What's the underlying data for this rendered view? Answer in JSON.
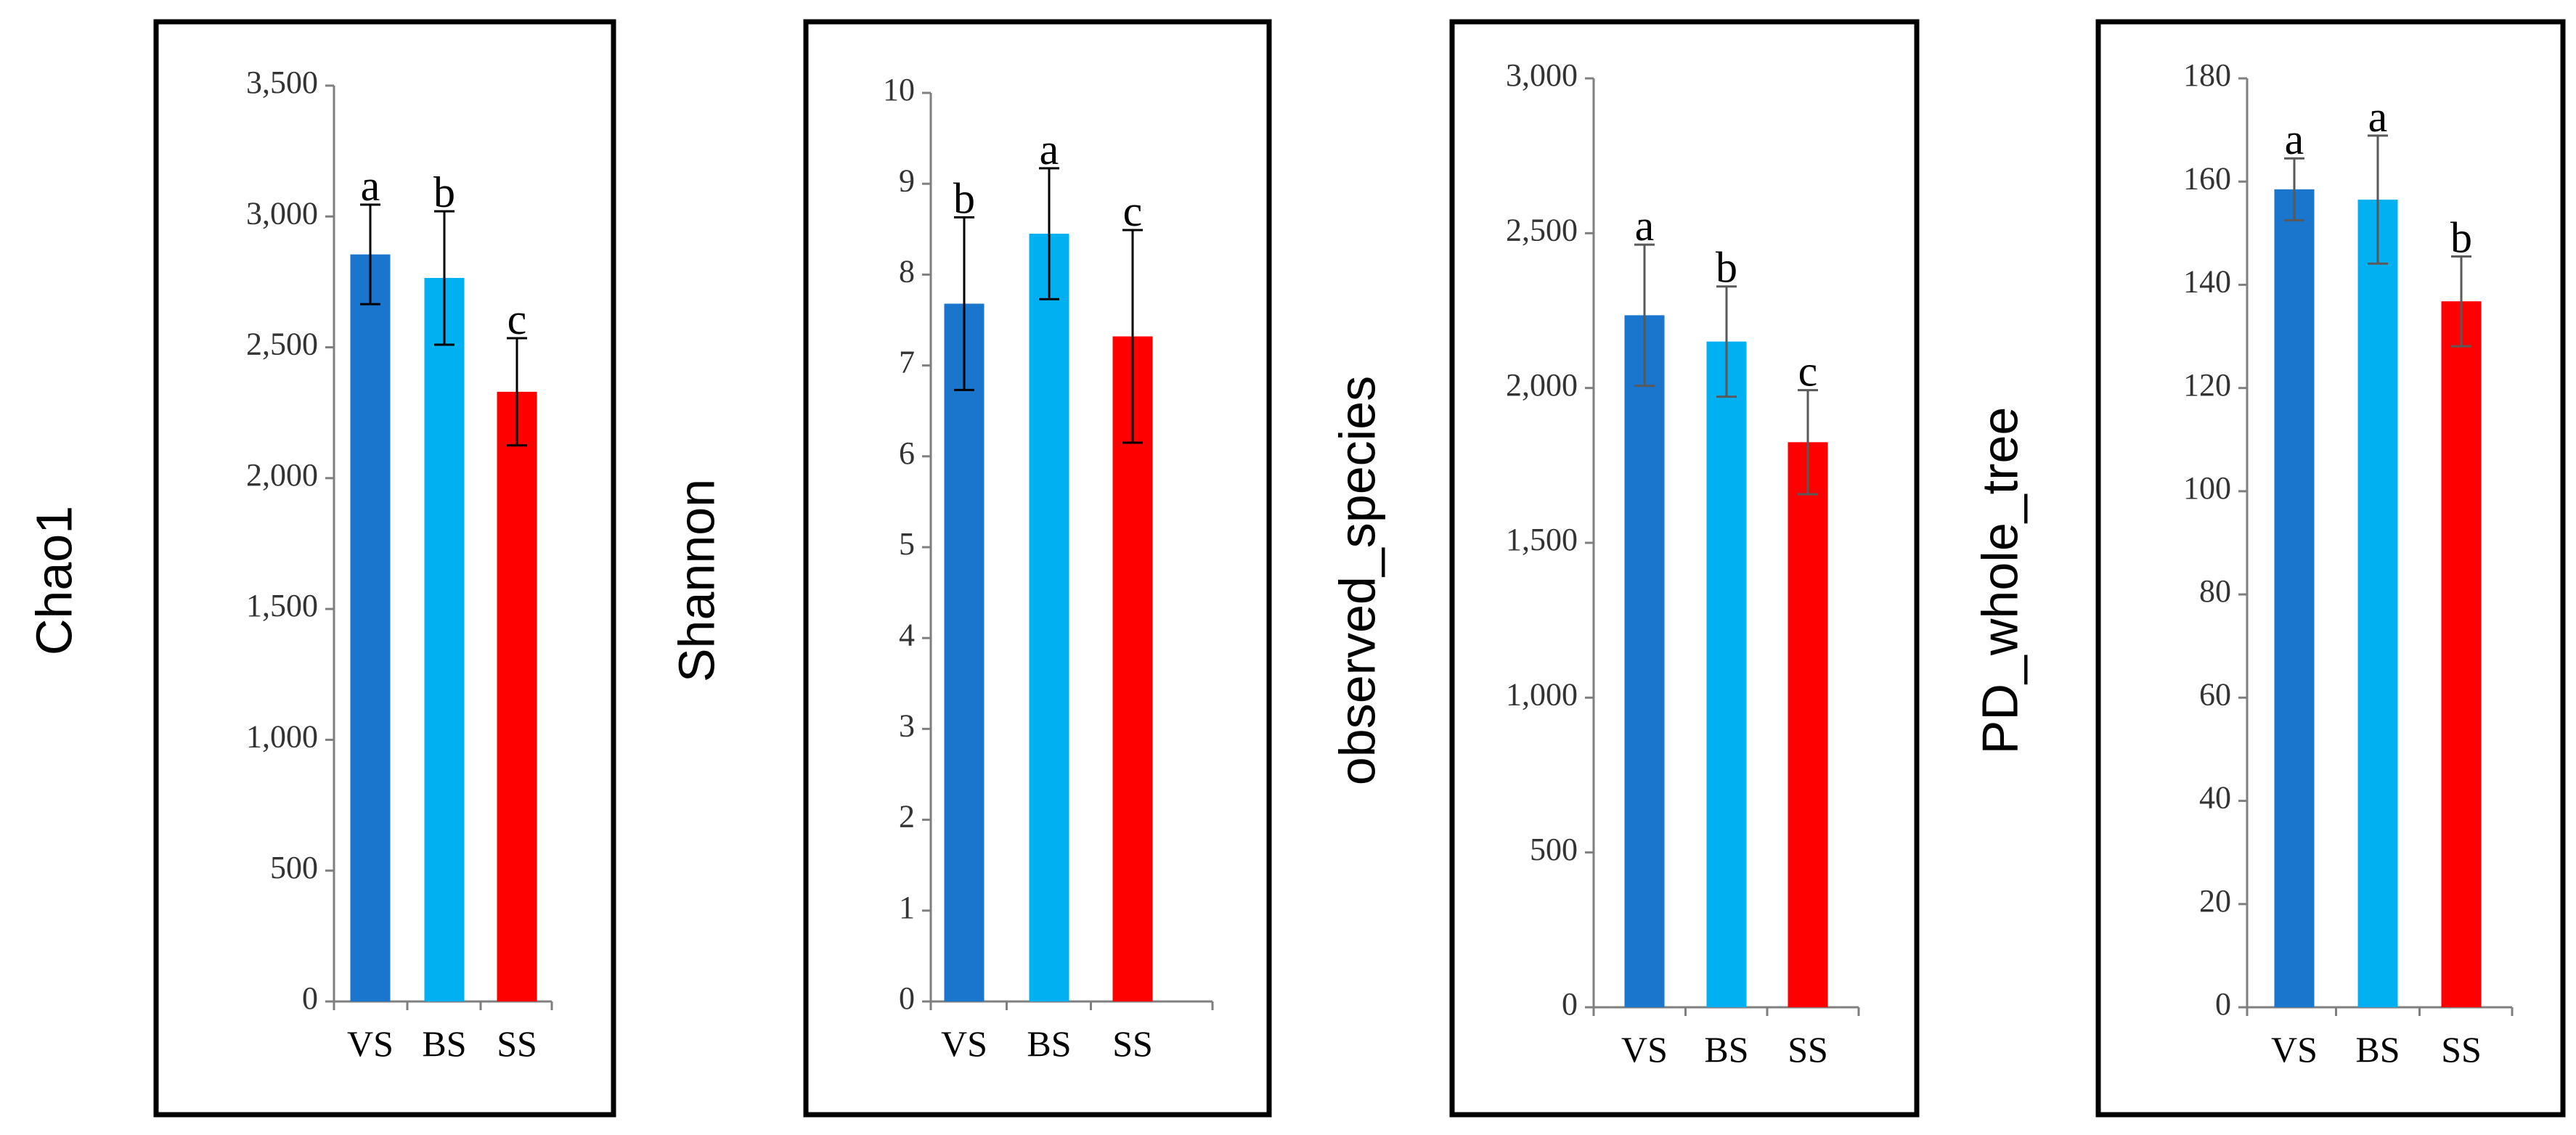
{
  "chart_data": [
    {
      "type": "bar",
      "ylabel": "Chao1",
      "categories": [
        "VS",
        "BS",
        "SS"
      ],
      "values": [
        2855,
        2765,
        2330
      ],
      "errors": [
        190,
        255,
        205
      ],
      "significance": [
        "a",
        "b",
        "c"
      ],
      "ylim": [
        0,
        3500
      ],
      "ytick_values": [
        0,
        500,
        1000,
        1500,
        2000,
        2500,
        3000,
        3500
      ],
      "ytick_labels": [
        "0",
        "500",
        "1,000",
        "1,500",
        "2,000",
        "2,500",
        "3,000",
        "3,500"
      ],
      "colors": [
        "#1a75cc",
        "#00b0f0",
        "#ff0000"
      ],
      "error_color": "#000000"
    },
    {
      "type": "bar",
      "ylabel": "Shannon",
      "categories": [
        "VS",
        "BS",
        "SS"
      ],
      "values": [
        7.68,
        8.45,
        7.32
      ],
      "errors": [
        0.95,
        0.72,
        1.17
      ],
      "significance": [
        "b",
        "a",
        "c"
      ],
      "ylim": [
        0,
        10
      ],
      "ytick_values": [
        0,
        1,
        2,
        3,
        4,
        5,
        6,
        7,
        8,
        9,
        10
      ],
      "ytick_labels": [
        "0",
        "1",
        "2",
        "3",
        "4",
        "5",
        "6",
        "7",
        "8",
        "9",
        "10"
      ],
      "colors": [
        "#1a75cc",
        "#00b0f0",
        "#ff0000"
      ],
      "error_color": "#000000"
    },
    {
      "type": "bar",
      "ylabel": "observed_species",
      "categories": [
        "VS",
        "BS",
        "SS"
      ],
      "values": [
        2235,
        2150,
        1825
      ],
      "errors": [
        228,
        178,
        168
      ],
      "significance": [
        "a",
        "b",
        "c"
      ],
      "ylim": [
        0,
        3000
      ],
      "ytick_values": [
        0,
        500,
        1000,
        1500,
        2000,
        2500,
        3000
      ],
      "ytick_labels": [
        "0",
        "500",
        "1,000",
        "1,500",
        "2,000",
        "2,500",
        "3,000"
      ],
      "colors": [
        "#1a75cc",
        "#00b0f0",
        "#ff0000"
      ],
      "error_color": "#595959"
    },
    {
      "type": "bar",
      "ylabel": "PD_whole_tree",
      "categories": [
        "VS",
        "BS",
        "SS"
      ],
      "values": [
        158.5,
        156.5,
        136.8
      ],
      "errors": [
        6.0,
        12.4,
        8.7
      ],
      "significance": [
        "a",
        "a",
        "b"
      ],
      "ylim": [
        0,
        180
      ],
      "ytick_values": [
        0,
        20,
        40,
        60,
        80,
        100,
        120,
        140,
        160,
        180
      ],
      "ytick_labels": [
        "0",
        "20",
        "40",
        "60",
        "80",
        "100",
        "120",
        "140",
        "160",
        "180"
      ],
      "colors": [
        "#1a75cc",
        "#00b0f0",
        "#ff0000"
      ],
      "error_color": "#595959"
    }
  ]
}
